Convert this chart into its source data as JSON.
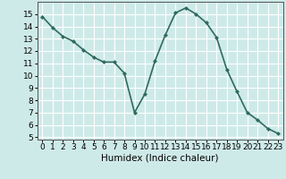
{
  "x": [
    0,
    1,
    2,
    3,
    4,
    5,
    6,
    7,
    8,
    9,
    10,
    11,
    12,
    13,
    14,
    15,
    16,
    17,
    18,
    19,
    20,
    21,
    22,
    23
  ],
  "y": [
    14.8,
    13.9,
    13.2,
    12.8,
    12.1,
    11.5,
    11.1,
    11.1,
    10.2,
    7.0,
    8.5,
    11.2,
    13.3,
    15.1,
    15.5,
    15.0,
    14.3,
    13.1,
    10.5,
    8.7,
    7.0,
    6.4,
    5.7,
    5.3
  ],
  "line_color": "#2e6b5e",
  "marker": "D",
  "marker_size": 2,
  "bg_color": "#ceeae8",
  "grid_color": "#ffffff",
  "xlabel": "Humidex (Indice chaleur)",
  "xlim": [
    -0.5,
    23.5
  ],
  "ylim": [
    4.8,
    16.0
  ],
  "yticks": [
    5,
    6,
    7,
    8,
    9,
    10,
    11,
    12,
    13,
    14,
    15
  ],
  "xticks": [
    0,
    1,
    2,
    3,
    4,
    5,
    6,
    7,
    8,
    9,
    10,
    11,
    12,
    13,
    14,
    15,
    16,
    17,
    18,
    19,
    20,
    21,
    22,
    23
  ],
  "tick_font_size": 6.5,
  "label_font_size": 7.5,
  "line_width": 1.2
}
